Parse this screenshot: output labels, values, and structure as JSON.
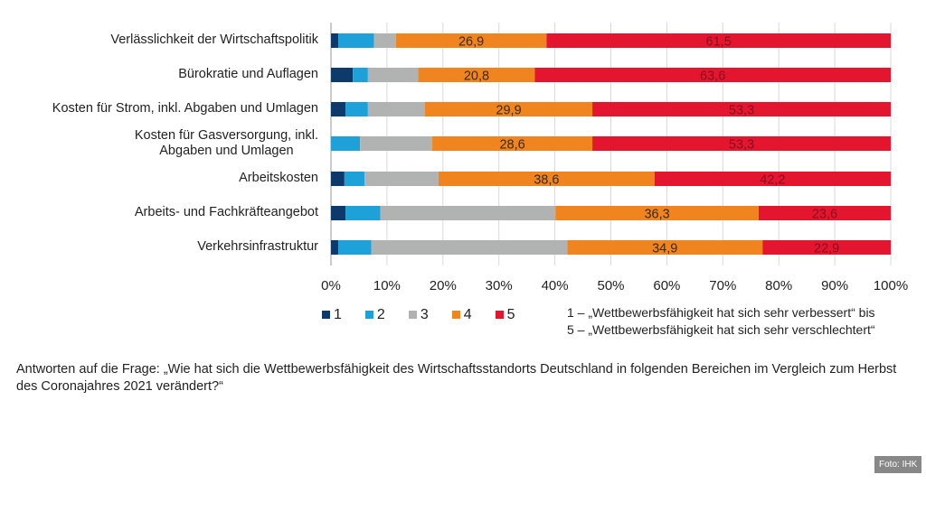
{
  "chart_data": {
    "type": "bar",
    "orientation": "horizontal",
    "stacked": true,
    "categories": [
      "Verlässlichkeit der Wirtschaftspolitik",
      "Bürokratie und Auflagen",
      "Kosten für Strom, inkl. Abgaben und Umlagen",
      "Kosten für Gasversorgung, inkl. Abgaben und Umlagen",
      "Arbeitskosten",
      "Arbeits- und Fachkräfteangebot",
      "Verkehrsinfrastruktur"
    ],
    "series": [
      {
        "name": "1",
        "color": "#0d3a6b",
        "values": [
          1.3,
          3.9,
          2.6,
          0,
          2.4,
          2.6,
          1.3
        ]
      },
      {
        "name": "2",
        "color": "#1ea0d8",
        "values": [
          6.4,
          2.7,
          4.0,
          5.2,
          3.6,
          6.2,
          5.9
        ]
      },
      {
        "name": "3",
        "color": "#b1b3b3",
        "values": [
          3.9,
          9.0,
          10.2,
          12.9,
          13.2,
          31.3,
          35.0
        ]
      },
      {
        "name": "4",
        "color": "#f0851f",
        "values": [
          26.9,
          20.8,
          29.9,
          28.6,
          38.6,
          36.3,
          34.9
        ]
      },
      {
        "name": "5",
        "color": "#e3152f",
        "values": [
          61.5,
          63.6,
          53.3,
          53.3,
          42.2,
          23.6,
          22.9
        ]
      }
    ],
    "data_labels": {
      "4": [
        "26,9",
        "20,8",
        "29,9",
        "28,6",
        "38,6",
        "36,3",
        "34,9"
      ],
      "5": [
        "61,5",
        "63,6",
        "53,3",
        "53,3",
        "42,2",
        "23,6",
        "22,9"
      ]
    },
    "xlim": [
      0,
      100
    ],
    "xticks": [
      "0%",
      "10%",
      "20%",
      "30%",
      "40%",
      "50%",
      "60%",
      "70%",
      "80%",
      "90%",
      "100%"
    ],
    "grid": true,
    "legend": "bottom"
  },
  "note": [
    "1 – „Wettbewerbsfähigkeit hat sich sehr verbessert“ bis",
    "5 – „Wettbewerbsfähigkeit hat sich sehr verschlechtert“"
  ],
  "question": "Antworten auf die Frage: „Wie hat sich die Wettbewerbsfähigkeit des Wirtschaftsstandorts Deutschland in folgenden Bereichen im Vergleich zum Herbst des Coronajahres 2021 verändert?“",
  "credit": "Foto: IHK"
}
